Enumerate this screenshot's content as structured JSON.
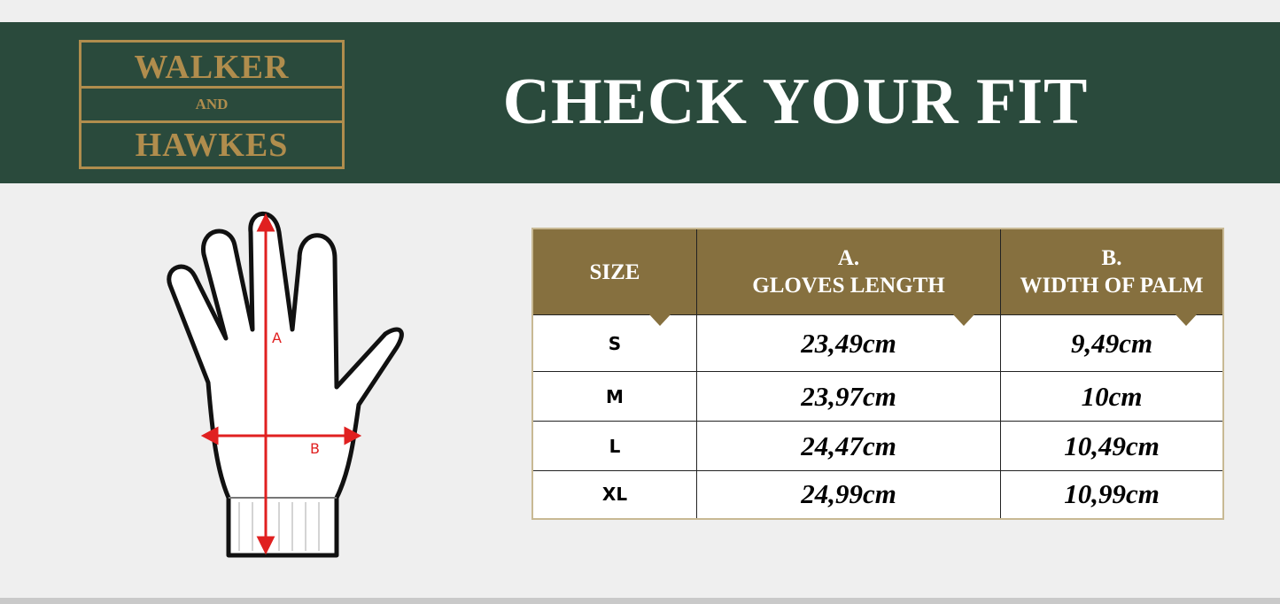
{
  "logo": {
    "line1": "WALKER",
    "line2": "AND",
    "line3": "HAWKES"
  },
  "title": "CHECK YOUR FIT",
  "diagram": {
    "label_a": "A",
    "label_b": "B",
    "arrow_color": "#e02020"
  },
  "table": {
    "headers": [
      "SIZE",
      [
        "A.",
        "GLOVES LENGTH"
      ],
      [
        "B.",
        "WIDTH OF PALM"
      ]
    ],
    "header_color": "#86703f",
    "rows": [
      {
        "size": "S",
        "length": "23,49cm",
        "width": "9,49cm"
      },
      {
        "size": "M",
        "length": "23,97cm",
        "width": "10cm"
      },
      {
        "size": "L",
        "length": "24,47cm",
        "width": "10,49cm"
      },
      {
        "size": "XL",
        "length": "24,99cm",
        "width": "10,99cm"
      }
    ]
  }
}
